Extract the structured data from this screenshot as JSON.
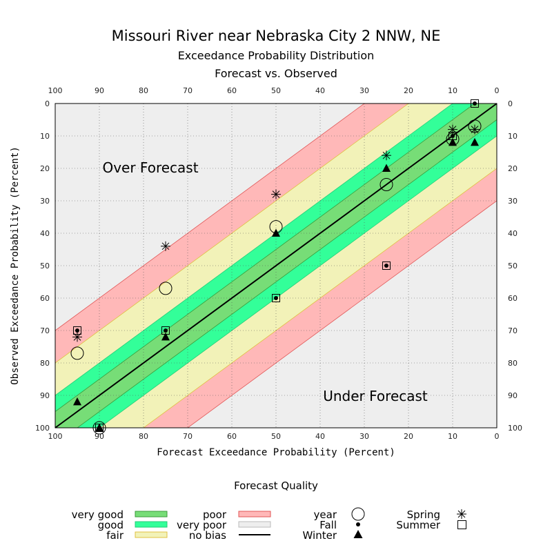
{
  "title": "Missouri River near Nebraska City 2 NNW, NE",
  "subtitle": "Exceedance Probability Distribution",
  "subtitle2": "Forecast vs. Observed",
  "chart_data": {
    "type": "scatter",
    "xlabel": "Forecast Exceedance Probability (Percent)",
    "ylabel": "Observed Exceedance Probability (Percent)",
    "xlim": [
      100,
      0
    ],
    "ylim": [
      100,
      0
    ],
    "x_ticks": [
      "100",
      "90",
      "80",
      "70",
      "60",
      "50",
      "40",
      "30",
      "20",
      "10",
      "0"
    ],
    "y_ticks": [
      "0",
      "10",
      "20",
      "30",
      "40",
      "50",
      "60",
      "70",
      "80",
      "90",
      "100"
    ],
    "grid": true,
    "annotations": {
      "over": "Over Forecast",
      "under": "Under Forecast"
    },
    "bands": [
      {
        "name": "very good",
        "half_width": 5,
        "color": "#77dd77"
      },
      {
        "name": "good",
        "half_width": 10,
        "color": "#33ff99"
      },
      {
        "name": "fair",
        "half_width": 20,
        "color": "#f2f2b8"
      },
      {
        "name": "poor",
        "half_width": 30,
        "color": "#ffb8b8"
      }
    ],
    "series": [
      {
        "name": "year",
        "marker": "circle",
        "points": [
          [
            95,
            77
          ],
          [
            90,
            100
          ],
          [
            75,
            57
          ],
          [
            50,
            38
          ],
          [
            25,
            25
          ],
          [
            10,
            11
          ],
          [
            5,
            7
          ]
        ]
      },
      {
        "name": "Fall",
        "marker": "dot",
        "points": [
          [
            95,
            70
          ],
          [
            90,
            100
          ],
          [
            75,
            70
          ],
          [
            50,
            60
          ],
          [
            25,
            50
          ],
          [
            10,
            10
          ],
          [
            5,
            0
          ]
        ]
      },
      {
        "name": "Winter",
        "marker": "triangle",
        "points": [
          [
            95,
            92
          ],
          [
            90,
            100
          ],
          [
            75,
            72
          ],
          [
            50,
            40
          ],
          [
            25,
            20
          ],
          [
            10,
            12
          ],
          [
            5,
            12
          ]
        ]
      },
      {
        "name": "Spring",
        "marker": "asterisk",
        "points": [
          [
            95,
            72
          ],
          [
            75,
            44
          ],
          [
            50,
            28
          ],
          [
            25,
            16
          ],
          [
            10,
            8
          ],
          [
            5,
            8
          ]
        ]
      },
      {
        "name": "Summer",
        "marker": "square",
        "points": [
          [
            95,
            70
          ],
          [
            90,
            100
          ],
          [
            75,
            70
          ],
          [
            50,
            60
          ],
          [
            25,
            50
          ],
          [
            10,
            10
          ],
          [
            5,
            0
          ]
        ]
      }
    ]
  },
  "legend": {
    "title": "Forecast Quality",
    "very_good": "very good",
    "good": "good",
    "fair": "fair",
    "poor": "poor",
    "very_poor": "very poor",
    "no_bias": "no bias",
    "year": "year",
    "fall": "Fall",
    "winter": "Winter",
    "spring": "Spring",
    "summer": "Summer",
    "colors": {
      "very_good": "#77dd77",
      "good": "#33ff99",
      "fair": "#f2f2b8",
      "poor": "#ffb8b8",
      "very_poor": "#eeeeee",
      "no_bias": "#000000"
    }
  }
}
